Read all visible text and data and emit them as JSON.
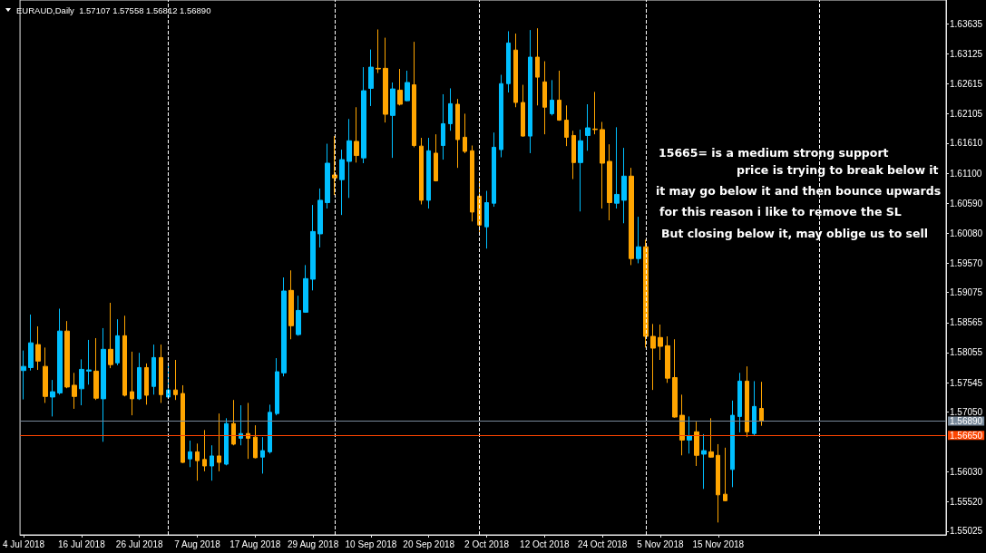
{
  "chart_data": {
    "type": "candlestick",
    "title": "EURAUD,Daily  1.57107 1.57558 1.56812 1.56890",
    "categories": [
      "4 Jul 2018",
      null,
      null,
      null,
      null,
      null,
      null,
      null,
      "16 Jul 2018",
      null,
      null,
      null,
      null,
      null,
      null,
      null,
      "26 Jul 2018",
      null,
      null,
      null,
      null,
      null,
      null,
      null,
      "7 Aug 2018",
      null,
      null,
      null,
      null,
      null,
      null,
      null,
      "17 Aug 2018",
      null,
      null,
      null,
      null,
      null,
      null,
      null,
      "29 Aug 2018",
      null,
      null,
      null,
      null,
      null,
      null,
      null,
      "10 Sep 2018",
      null,
      null,
      null,
      null,
      null,
      null,
      null,
      "20 Sep 2018",
      null,
      null,
      null,
      null,
      null,
      null,
      null,
      "2 Oct 2018",
      null,
      null,
      null,
      null,
      null,
      null,
      null,
      "12 Oct 2018",
      null,
      null,
      null,
      null,
      null,
      null,
      null,
      "24 Oct 2018",
      null,
      null,
      null,
      null,
      null,
      null,
      null,
      "5 Nov 2018",
      null,
      null,
      null,
      null,
      null,
      null,
      null,
      "15 Nov 2018",
      null,
      null,
      null,
      null,
      null,
      null,
      null,
      null,
      null,
      null,
      null,
      null,
      null,
      null,
      null,
      null,
      null,
      null,
      null,
      null,
      null,
      null,
      null,
      null,
      null,
      null,
      null,
      null,
      null,
      null,
      null
    ],
    "ohlc": [
      [
        1.5775,
        1.5809,
        1.5726,
        1.5782
      ],
      [
        1.578,
        1.587,
        1.5775,
        1.5822
      ],
      [
        1.5819,
        1.585,
        1.5776,
        1.5791
      ],
      [
        1.5782,
        1.5814,
        1.572,
        1.5731
      ],
      [
        1.573,
        1.5759,
        1.5697,
        1.5739
      ],
      [
        1.5737,
        1.588,
        1.5734,
        1.5842
      ],
      [
        1.5842,
        1.5859,
        1.5745,
        1.5747
      ],
      [
        1.575,
        1.5771,
        1.571,
        1.5731
      ],
      [
        1.5744,
        1.5794,
        1.5716,
        1.5777
      ],
      [
        1.5774,
        1.5827,
        1.5751,
        1.5776
      ],
      [
        1.5774,
        1.583,
        1.5725,
        1.5728
      ],
      [
        1.5727,
        1.5847,
        1.5654,
        1.5811
      ],
      [
        1.5811,
        1.589,
        1.5779,
        1.5785
      ],
      [
        1.5788,
        1.5862,
        1.5784,
        1.5834
      ],
      [
        1.5834,
        1.5868,
        1.5731,
        1.5733
      ],
      [
        1.5739,
        1.5807,
        1.5699,
        1.5727
      ],
      [
        1.5727,
        1.5805,
        1.5725,
        1.578
      ],
      [
        1.578,
        1.5787,
        1.5717,
        1.5733
      ],
      [
        1.5748,
        1.5819,
        1.5734,
        1.5797
      ],
      [
        1.5797,
        1.5819,
        1.572,
        1.5734
      ],
      [
        1.573,
        1.5788,
        1.5727,
        1.5742
      ],
      [
        1.5742,
        1.5793,
        1.5725,
        1.5734
      ],
      [
        1.5736,
        1.575,
        1.5618,
        1.5619
      ],
      [
        1.5625,
        1.5656,
        1.5611,
        1.5637
      ],
      [
        1.5637,
        1.5651,
        1.5588,
        1.5622
      ],
      [
        1.5624,
        1.5674,
        1.5604,
        1.5613
      ],
      [
        1.5613,
        1.5648,
        1.5588,
        1.563
      ],
      [
        1.563,
        1.5702,
        1.5604,
        1.5619
      ],
      [
        1.5616,
        1.5694,
        1.5614,
        1.5685
      ],
      [
        1.5685,
        1.5725,
        1.5648,
        1.565
      ],
      [
        1.566,
        1.5716,
        1.5648,
        1.5668
      ],
      [
        1.5668,
        1.572,
        1.5625,
        1.566
      ],
      [
        1.5662,
        1.5682,
        1.5626,
        1.5627
      ],
      [
        1.5628,
        1.5662,
        1.56,
        1.5639
      ],
      [
        1.5637,
        1.5717,
        1.5634,
        1.5704
      ],
      [
        1.5702,
        1.5796,
        1.5699,
        1.5773
      ],
      [
        1.5771,
        1.5933,
        1.5765,
        1.591
      ],
      [
        1.5911,
        1.5945,
        1.5828,
        1.5851
      ],
      [
        1.5836,
        1.5902,
        1.5834,
        1.5877
      ],
      [
        1.5874,
        1.5954,
        1.5873,
        1.5931
      ],
      [
        1.593,
        1.6056,
        1.5911,
        1.6011
      ],
      [
        1.6007,
        1.6084,
        1.5984,
        1.6064
      ],
      [
        1.606,
        1.616,
        1.605,
        1.6127
      ],
      [
        1.6107,
        1.6173,
        1.6073,
        1.6102
      ],
      [
        1.6099,
        1.615,
        1.6039,
        1.6133
      ],
      [
        1.613,
        1.6202,
        1.6068,
        1.6165
      ],
      [
        1.6164,
        1.6222,
        1.6128,
        1.614
      ],
      [
        1.6136,
        1.629,
        1.6127,
        1.625
      ],
      [
        1.6254,
        1.632,
        1.6224,
        1.629
      ],
      [
        1.6288,
        1.6354,
        1.628,
        1.6287
      ],
      [
        1.6288,
        1.634,
        1.6196,
        1.621
      ],
      [
        1.6208,
        1.6264,
        1.6136,
        1.6253
      ],
      [
        1.6251,
        1.6287,
        1.6225,
        1.6227
      ],
      [
        1.6233,
        1.6284,
        1.6232,
        1.6264
      ],
      [
        1.626,
        1.6333,
        1.6154,
        1.6157
      ],
      [
        1.6156,
        1.617,
        1.6057,
        1.6064
      ],
      [
        1.6064,
        1.617,
        1.605,
        1.6148
      ],
      [
        1.6144,
        1.6176,
        1.6096,
        1.6097
      ],
      [
        1.6157,
        1.6244,
        1.6133,
        1.6194
      ],
      [
        1.6194,
        1.6254,
        1.6182,
        1.6228
      ],
      [
        1.6227,
        1.6236,
        1.6119,
        1.6167
      ],
      [
        1.6171,
        1.6211,
        1.6144,
        1.6147
      ],
      [
        1.6148,
        1.6157,
        1.6028,
        1.6044
      ],
      [
        1.6071,
        1.6096,
        1.6008,
        1.6022
      ],
      [
        1.6019,
        1.608,
        1.5982,
        1.606
      ],
      [
        1.6059,
        1.6179,
        1.6053,
        1.6154
      ],
      [
        1.615,
        1.6277,
        1.6137,
        1.6262
      ],
      [
        1.6262,
        1.6351,
        1.6247,
        1.6331
      ],
      [
        1.6319,
        1.6347,
        1.6222,
        1.623
      ],
      [
        1.623,
        1.626,
        1.6172,
        1.6173
      ],
      [
        1.6173,
        1.6353,
        1.6144,
        1.6307
      ],
      [
        1.6307,
        1.6356,
        1.6225,
        1.6273
      ],
      [
        1.6265,
        1.63,
        1.6176,
        1.6222
      ],
      [
        1.6211,
        1.6268,
        1.6208,
        1.6234
      ],
      [
        1.6234,
        1.6284,
        1.6199,
        1.62
      ],
      [
        1.62,
        1.6225,
        1.6156,
        1.6171
      ],
      [
        1.6174,
        1.6182,
        1.61,
        1.6128
      ],
      [
        1.6128,
        1.6184,
        1.6045,
        1.6165
      ],
      [
        1.6174,
        1.6227,
        1.6148,
        1.6187
      ],
      [
        1.6185,
        1.6248,
        1.6176,
        1.6184
      ],
      [
        1.6184,
        1.6197,
        1.605,
        1.6127
      ],
      [
        1.613,
        1.6159,
        1.603,
        1.606
      ],
      [
        1.6059,
        1.6188,
        1.605,
        1.6074
      ],
      [
        1.6064,
        1.6153,
        1.6025,
        1.6105
      ],
      [
        1.6105,
        1.6119,
        1.5954,
        1.5965
      ],
      [
        1.5965,
        1.6036,
        1.5957,
        1.5985
      ],
      [
        1.5985,
        1.5997,
        1.5814,
        1.5833
      ],
      [
        1.5833,
        1.5854,
        1.5742,
        1.5813
      ],
      [
        1.5831,
        1.5853,
        1.5793,
        1.5816
      ],
      [
        1.5817,
        1.5833,
        1.5754,
        1.5762
      ],
      [
        1.5763,
        1.5828,
        1.5695,
        1.5696
      ],
      [
        1.5699,
        1.5734,
        1.5631,
        1.5657
      ],
      [
        1.5657,
        1.5697,
        1.5634,
        1.5664
      ],
      [
        1.5671,
        1.5688,
        1.5613,
        1.5631
      ],
      [
        1.5633,
        1.5667,
        1.5574,
        1.5639
      ],
      [
        1.5637,
        1.5694,
        1.5627,
        1.5628
      ],
      [
        1.5631,
        1.565,
        1.5517,
        1.5564
      ],
      [
        1.5565,
        1.5644,
        1.5553,
        1.5554
      ],
      [
        1.5607,
        1.5724,
        1.5577,
        1.5699
      ],
      [
        1.5697,
        1.5771,
        1.567,
        1.5757
      ],
      [
        1.5757,
        1.5782,
        1.5662,
        1.5671
      ],
      [
        1.5668,
        1.5757,
        1.5665,
        1.5714
      ],
      [
        1.57107,
        1.57558,
        1.56812,
        1.5689
      ],
      null,
      null,
      null,
      null,
      null,
      null,
      null,
      null,
      null,
      null,
      null,
      null,
      null,
      null,
      null,
      null,
      null,
      null,
      null,
      null,
      null,
      null,
      null,
      null,
      null
    ],
    "colors": [
      "#00bfff",
      "#00bfff",
      "#ffa500",
      "#ffa500",
      "#00bfff",
      "#00bfff",
      "#ffa500",
      "#ffa500",
      "#00bfff",
      "#00bfff",
      "#ffa500",
      "#00bfff",
      "#ffa500",
      "#00bfff",
      "#ffa500",
      "#ffa500",
      "#00bfff",
      "#ffa500",
      "#00bfff",
      "#ffa500",
      "#00bfff",
      "#ffa500",
      "#ffa500",
      "#00bfff",
      "#ffa500",
      "#ffa500",
      "#00bfff",
      "#ffa500",
      "#00bfff",
      "#ffa500",
      "#00bfff",
      "#ffa500",
      "#ffa500",
      "#00bfff",
      "#00bfff",
      "#00bfff",
      "#00bfff",
      "#ffa500",
      "#00bfff",
      "#00bfff",
      "#00bfff",
      "#00bfff",
      "#00bfff",
      "#ffa500",
      "#00bfff",
      "#00bfff",
      "#ffa500",
      "#00bfff",
      "#00bfff",
      "#ffa500",
      "#ffa500",
      "#00bfff",
      "#ffa500",
      "#00bfff",
      "#ffa500",
      "#ffa500",
      "#00bfff",
      "#ffa500",
      "#00bfff",
      "#00bfff",
      "#ffa500",
      "#ffa500",
      "#ffa500",
      "#ffa500",
      "#00bfff",
      "#00bfff",
      "#00bfff",
      "#00bfff",
      "#ffa500",
      "#ffa500",
      "#00bfff",
      "#ffa500",
      "#ffa500",
      "#00bfff",
      "#ffa500",
      "#ffa500",
      "#ffa500",
      "#00bfff",
      "#00bfff",
      "#ffa500",
      "#ffa500",
      "#ffa500",
      "#00bfff",
      "#00bfff",
      "#ffa500",
      "#00bfff",
      "#ffa500",
      "#ffa500",
      "#ffa500",
      "#ffa500",
      "#ffa500",
      "#ffa500",
      "#00bfff",
      "#ffa500",
      "#00bfff",
      "#ffa500",
      "#ffa500",
      "#ffa500",
      "#00bfff",
      "#00bfff",
      "#ffa500",
      "#00bfff",
      "#ffa500",
      null,
      null,
      null,
      null,
      null,
      null,
      null,
      null,
      null,
      null,
      null,
      null,
      null,
      null,
      null,
      null,
      null,
      null,
      null,
      null,
      null,
      null,
      null,
      null,
      null
    ],
    "ylim": [
      1.5496,
      1.6404
    ],
    "yticks": [
      1.63635,
      1.63125,
      1.62615,
      1.62105,
      {
        "value": 1.6161,
        "label": "1.61610"
      },
      {
        "value": 1.611,
        "label": "1.61100"
      },
      {
        "value": 1.6059,
        "label": "1.60590"
      },
      {
        "value": 1.6008,
        "label": "1.60080"
      },
      {
        "value": 1.5957,
        "label": "1.59570"
      },
      1.59075,
      1.58565,
      1.58055,
      1.57545,
      {
        "value": 1.5705,
        "label": "1.57050"
      },
      {
        "value": 1.5603,
        "label": "1.56030"
      },
      {
        "value": 1.5552,
        "label": "1.55520"
      },
      1.55025
    ],
    "ref_lines": [
      {
        "axis": "y",
        "value": 1.5689,
        "label": "1.56890",
        "color": "#778899",
        "line_style": "solid"
      },
      {
        "axis": "y",
        "value": 1.5665,
        "label": "1.56650",
        "color": "#ff4500",
        "line_style": "solid"
      }
    ],
    "annotations": [
      "15665= is a medium strong support",
      "price is trying to break below it",
      "it may go below it and then bounce upwards",
      "for this reason i like to remove the SL",
      "But closing below it, may oblige us to sell"
    ]
  }
}
